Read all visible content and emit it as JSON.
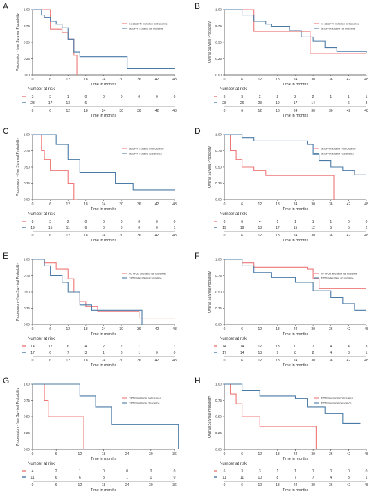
{
  "colors": {
    "red": "#ef7777",
    "blue": "#4a7aa6",
    "axis": "#444444"
  },
  "panels": [
    {
      "letter": "A",
      "chart_data": {
        "type": "line",
        "title": "",
        "ylabel": "Progression - free Survival Probability",
        "xlabel": "Time in months",
        "xlim": [
          0,
          48
        ],
        "ylim": [
          0,
          1
        ],
        "xticks": [
          0,
          6,
          12,
          18,
          24,
          30,
          36,
          42,
          48
        ],
        "yticks": [
          "0.00",
          "0.25",
          "0.50",
          "0.75",
          "1.00"
        ],
        "legend": "top-right",
        "series": [
          {
            "name": "no sEGFR mutation at baseline",
            "color": "red",
            "x": [
              0,
              6,
              10,
              12,
              14,
              15
            ],
            "y": [
              1.0,
              0.7,
              0.65,
              0.55,
              0.3,
              0.0
            ]
          },
          {
            "name": "sEGFR mutation at baseline",
            "color": "blue",
            "x": [
              0,
              3,
              4,
              6,
              8,
              10,
              12,
              14,
              16,
              28,
              32,
              48
            ],
            "y": [
              1.0,
              0.92,
              0.88,
              0.82,
              0.78,
              0.72,
              0.55,
              0.35,
              0.28,
              0.28,
              0.1,
              0.1
            ]
          }
        ],
        "risk_table": {
          "title": "Number at risk",
          "rows": [
            [
              "3",
              "3",
              "1",
              "0",
              "0",
              "0",
              "0",
              "0",
              "0"
            ],
            [
              "28",
              "17",
              "13",
              "6",
              "",
              "",
              "",
              "",
              ""
            ]
          ]
        }
      }
    },
    {
      "letter": "B",
      "chart_data": {
        "type": "line",
        "title": "",
        "ylabel": "Overall Survival Probability",
        "xlabel": "Time in months",
        "xlim": [
          0,
          48
        ],
        "ylim": [
          0,
          1
        ],
        "xticks": [
          0,
          6,
          12,
          18,
          24,
          30,
          36,
          42,
          48
        ],
        "yticks": [
          "0.00",
          "0.25",
          "0.50",
          "0.75",
          "1.00"
        ],
        "legend": "top-right",
        "series": [
          {
            "name": "no sEGFR mutation at baseline",
            "color": "red",
            "x": [
              0,
              6,
              10,
              28,
              29,
              48
            ],
            "y": [
              1.0,
              1.0,
              0.67,
              0.67,
              0.33,
              0.33
            ]
          },
          {
            "name": "sEGFR mutation at baseline",
            "color": "blue",
            "x": [
              0,
              6,
              10,
              14,
              16,
              22,
              26,
              30,
              34,
              38,
              48
            ],
            "y": [
              1.0,
              0.92,
              0.82,
              0.78,
              0.74,
              0.68,
              0.58,
              0.52,
              0.42,
              0.36,
              0.33
            ]
          }
        ],
        "risk_table": {
          "title": "Number at risk",
          "rows": [
            [
              "3",
              "3",
              "2",
              "2",
              "2",
              "2",
              "1",
              "1",
              "1"
            ],
            [
              "28",
              "26",
              "23",
              "19",
              "17",
              "14",
              "",
              "6",
              "3"
            ]
          ]
        }
      }
    },
    {
      "letter": "C",
      "chart_data": {
        "type": "line",
        "title": "",
        "ylabel": "Progression - free Survival Probability",
        "xlabel": "Time in months",
        "xlim": [
          0,
          48
        ],
        "ylim": [
          0,
          1
        ],
        "xticks": [
          0,
          6,
          12,
          18,
          24,
          30,
          36,
          42,
          48
        ],
        "yticks": [
          "0.00",
          "0.25",
          "0.50",
          "0.75",
          "1.00"
        ],
        "legend": "top-right",
        "series": [
          {
            "name": "sEGFR mutation not cleared",
            "color": "red",
            "x": [
              0,
              3,
              4,
              6,
              12,
              14,
              15
            ],
            "y": [
              1.0,
              0.75,
              0.62,
              0.45,
              0.25,
              0.0,
              0.0
            ]
          },
          {
            "name": "sEGFR mutation clearance",
            "color": "blue",
            "x": [
              0,
              6,
              8,
              12,
              16,
              28,
              34,
              48
            ],
            "y": [
              1.0,
              1.0,
              0.85,
              0.62,
              0.42,
              0.25,
              0.15,
              0.15
            ]
          }
        ],
        "risk_table": {
          "title": "Number at risk",
          "rows": [
            [
              "8",
              "3",
              "2",
              "0",
              "0",
              "0",
              "0",
              "0",
              "0"
            ],
            [
              "19",
              "15",
              "11",
              "6",
              "0",
              "0",
              "0",
              "0",
              "1"
            ]
          ]
        }
      }
    },
    {
      "letter": "D",
      "chart_data": {
        "type": "line",
        "title": "",
        "ylabel": "Overall Survival Probability",
        "xlabel": "Time in months",
        "xlim": [
          0,
          48
        ],
        "ylim": [
          0,
          1
        ],
        "xticks": [
          0,
          6,
          12,
          18,
          24,
          30,
          36,
          42,
          48
        ],
        "yticks": [
          "0.00",
          "0.25",
          "0.50",
          "0.75",
          "1.00"
        ],
        "legend": "top-right",
        "series": [
          {
            "name": "sEGFR mutation not cleared",
            "color": "red",
            "x": [
              0,
              2,
              4,
              6,
              10,
              14,
              36,
              37
            ],
            "y": [
              1.0,
              0.75,
              0.62,
              0.5,
              0.45,
              0.37,
              0.37,
              0.0
            ]
          },
          {
            "name": "sEGFR mutation clearance",
            "color": "blue",
            "x": [
              0,
              6,
              10,
              28,
              30,
              32,
              36,
              40,
              44,
              48
            ],
            "y": [
              1.0,
              0.95,
              0.9,
              0.85,
              0.7,
              0.6,
              0.5,
              0.45,
              0.38,
              0.38
            ]
          }
        ],
        "risk_table": {
          "title": "Number at risk",
          "rows": [
            [
              "8",
              "6",
              "4",
              "1",
              "1",
              "1",
              "1",
              "0",
              "0"
            ],
            [
              "19",
              "19",
              "18",
              "17",
              "15",
              "12",
              "5",
              "5",
              "2"
            ]
          ]
        }
      }
    },
    {
      "letter": "E",
      "chart_data": {
        "type": "line",
        "title": "",
        "ylabel": "Progression - free Survival Probability",
        "xlabel": "Time in months",
        "xlim": [
          0,
          48
        ],
        "ylim": [
          0,
          1
        ],
        "xticks": [
          0,
          6,
          12,
          18,
          24,
          30,
          36,
          42,
          48
        ],
        "yticks": [
          "0.00",
          "0.25",
          "0.50",
          "0.75",
          "1.00"
        ],
        "legend": "top-right",
        "series": [
          {
            "name": "no TP53 alteration at baseline",
            "color": "red",
            "x": [
              0,
              4,
              8,
              12,
              14,
              16,
              18,
              22,
              36,
              48
            ],
            "y": [
              1.0,
              0.95,
              0.85,
              0.7,
              0.5,
              0.35,
              0.28,
              0.2,
              0.1,
              0.1
            ]
          },
          {
            "name": "TP53 alteration at baseline",
            "color": "blue",
            "x": [
              0,
              4,
              6,
              10,
              12,
              16,
              20,
              36,
              37
            ],
            "y": [
              1.0,
              0.9,
              0.75,
              0.65,
              0.5,
              0.3,
              0.22,
              0.22,
              0.0
            ]
          }
        ],
        "risk_table": {
          "title": "Number at risk",
          "rows": [
            [
              "14",
              "12",
              "6",
              "4",
              "2",
              "2",
              "1",
              "1",
              "1"
            ],
            [
              "17",
              "6",
              "7",
              "3",
              "1",
              "0",
              "1",
              "0",
              "0"
            ]
          ]
        }
      }
    },
    {
      "letter": "F",
      "chart_data": {
        "type": "line",
        "title": "",
        "ylabel": "Overall Survival Probability",
        "xlabel": "Time in months",
        "xlim": [
          0,
          48
        ],
        "ylim": [
          0,
          1
        ],
        "xticks": [
          0,
          6,
          12,
          18,
          24,
          30,
          36,
          42,
          48
        ],
        "yticks": [
          "0.00",
          "0.25",
          "0.50",
          "0.75",
          "1.00"
        ],
        "legend": "top-right",
        "series": [
          {
            "name": "no TP53 alteration at baseline",
            "color": "red",
            "x": [
              0,
              6,
              10,
              28,
              30,
              32,
              48
            ],
            "y": [
              1.0,
              0.95,
              0.88,
              0.85,
              0.7,
              0.55,
              0.55
            ]
          },
          {
            "name": "TP53 alteration at baseline",
            "color": "blue",
            "x": [
              0,
              6,
              10,
              16,
              24,
              30,
              36,
              40,
              44,
              48
            ],
            "y": [
              1.0,
              0.9,
              0.8,
              0.72,
              0.65,
              0.52,
              0.42,
              0.32,
              0.22,
              0.22
            ]
          }
        ],
        "risk_table": {
          "title": "Number at risk",
          "rows": [
            [
              "14",
              "14",
              "12",
              "13",
              "11",
              "7",
              "4",
              "4",
              "3"
            ],
            [
              "17",
              "14",
              "13",
              "9",
              "8",
              "8",
              "4",
              "3",
              "1"
            ]
          ]
        }
      }
    },
    {
      "letter": "G",
      "chart_data": {
        "type": "line",
        "title": "",
        "ylabel": "Progression - free Survival Probability",
        "xlabel": "Time in months",
        "xlim": [
          0,
          36
        ],
        "ylim": [
          0,
          1
        ],
        "xticks": [
          0,
          6,
          12,
          18,
          24,
          30,
          36
        ],
        "yticks": [
          "0.00",
          "0.25",
          "0.50",
          "0.75",
          "1.00"
        ],
        "legend": "top-right",
        "series": [
          {
            "name": "TP53 mutation not cleared",
            "color": "red",
            "x": [
              0,
              3,
              4,
              12,
              13
            ],
            "y": [
              1.0,
              0.75,
              0.5,
              0.5,
              0.0
            ]
          },
          {
            "name": "TP53 mutation clearance",
            "color": "blue",
            "x": [
              0,
              6,
              12,
              16,
              20,
              36,
              37
            ],
            "y": [
              1.0,
              1.0,
              0.82,
              0.65,
              0.38,
              0.38,
              0.0
            ]
          }
        ],
        "risk_table": {
          "title": "Number at risk",
          "rows": [
            [
              "4",
              "2",
              "1",
              "0",
              "0",
              "0",
              "0"
            ],
            [
              "11",
              "6",
              "6",
              "3",
              "1",
              "1",
              "0"
            ]
          ]
        }
      }
    },
    {
      "letter": "H",
      "chart_data": {
        "type": "line",
        "title": "",
        "ylabel": "Overall Survival Probability",
        "xlabel": "Time in months",
        "xlim": [
          0,
          48
        ],
        "ylim": [
          0,
          1
        ],
        "xticks": [
          0,
          6,
          12,
          18,
          24,
          30,
          36,
          42,
          48
        ],
        "yticks": [
          "0.00",
          "0.25",
          "0.50",
          "0.75",
          "1.00"
        ],
        "legend": "top-right",
        "series": [
          {
            "name": "TP53 mutation not cleared",
            "color": "red",
            "x": [
              0,
              2,
              4,
              6,
              12,
              24,
              30,
              31
            ],
            "y": [
              1.0,
              0.85,
              0.7,
              0.5,
              0.35,
              0.35,
              0.35,
              0.0
            ]
          },
          {
            "name": "TP53 mutation clearance",
            "color": "blue",
            "x": [
              0,
              6,
              12,
              24,
              28,
              34,
              40,
              46
            ],
            "y": [
              1.0,
              0.9,
              0.82,
              0.78,
              0.65,
              0.55,
              0.4,
              0.4
            ]
          }
        ],
        "risk_table": {
          "title": "Number at risk",
          "rows": [
            [
              "6",
              "3",
              "3",
              "1",
              "1",
              "1",
              "0",
              "0",
              "0"
            ],
            [
              "11",
              "11",
              "10",
              "8",
              "7",
              "7",
              "4",
              "3",
              "1"
            ]
          ]
        }
      }
    }
  ]
}
